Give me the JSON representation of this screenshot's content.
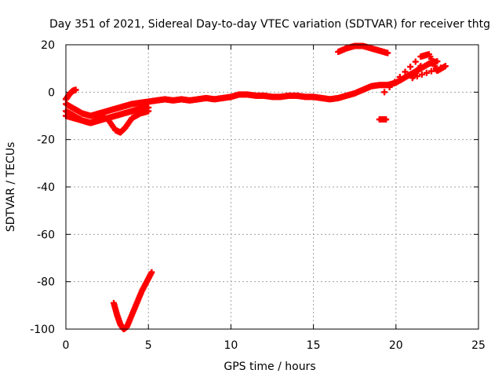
{
  "chart_data": {
    "type": "scatter",
    "title": "Day 351 of 2021, Sidereal Day-to-day VTEC variation (SDTVAR) for receiver thtg",
    "xlabel": "GPS time / hours",
    "ylabel": "SDTVAR / TECUs",
    "xlim": [
      0,
      25
    ],
    "ylim": [
      -100,
      20
    ],
    "xticks": [
      0,
      5,
      10,
      15,
      20,
      25
    ],
    "yticks": [
      -100,
      -80,
      -60,
      -40,
      -20,
      0,
      20
    ],
    "grid": true,
    "marker": "+",
    "marker_color": "#ff0000",
    "series": [
      {
        "name": "main-band",
        "points": [
          [
            0,
            -5
          ],
          [
            0.5,
            -7
          ],
          [
            1,
            -9
          ],
          [
            1.5,
            -10
          ],
          [
            2,
            -9
          ],
          [
            2.5,
            -8
          ],
          [
            3,
            -7
          ],
          [
            3.5,
            -6
          ],
          [
            4,
            -5
          ],
          [
            4.5,
            -4.5
          ],
          [
            5,
            -4
          ],
          [
            5.5,
            -3.5
          ],
          [
            6,
            -3
          ],
          [
            6.5,
            -3.5
          ],
          [
            7,
            -3
          ],
          [
            7.5,
            -3.5
          ],
          [
            8,
            -3
          ],
          [
            8.5,
            -2.5
          ],
          [
            9,
            -3
          ],
          [
            9.5,
            -2.5
          ],
          [
            10,
            -2
          ],
          [
            10.5,
            -1
          ],
          [
            11,
            -1
          ],
          [
            11.5,
            -1.5
          ],
          [
            12,
            -1.5
          ],
          [
            12.5,
            -2
          ],
          [
            13,
            -2
          ],
          [
            13.5,
            -1.5
          ],
          [
            14,
            -1.5
          ],
          [
            14.5,
            -2
          ],
          [
            15,
            -2
          ],
          [
            15.5,
            -2.5
          ],
          [
            16,
            -3
          ],
          [
            16.5,
            -2.5
          ],
          [
            17,
            -1.5
          ],
          [
            17.5,
            -0.5
          ],
          [
            18,
            1
          ],
          [
            18.5,
            2.5
          ],
          [
            19,
            3
          ],
          [
            19.5,
            3
          ],
          [
            20,
            4
          ],
          [
            20.5,
            6
          ],
          [
            21,
            8
          ],
          [
            21.5,
            10
          ],
          [
            22,
            12
          ],
          [
            22.5,
            13
          ]
        ]
      },
      {
        "name": "lower-band",
        "points": [
          [
            0,
            -10
          ],
          [
            0.5,
            -11
          ],
          [
            1,
            -12
          ],
          [
            1.5,
            -13
          ],
          [
            2,
            -12
          ],
          [
            2.5,
            -11
          ],
          [
            3,
            -10
          ],
          [
            3.5,
            -9
          ],
          [
            4,
            -8
          ],
          [
            4.5,
            -7
          ],
          [
            5,
            -6.5
          ]
        ]
      },
      {
        "name": "dip-loop",
        "points": [
          [
            0,
            -8
          ],
          [
            0.5,
            -10
          ],
          [
            1,
            -12
          ],
          [
            1.5,
            -13
          ],
          [
            2,
            -11
          ],
          [
            2.5,
            -11
          ],
          [
            3,
            -16
          ],
          [
            3.3,
            -17
          ],
          [
            3.6,
            -15
          ],
          [
            4,
            -11
          ],
          [
            4.5,
            -9
          ],
          [
            5,
            -8
          ]
        ]
      },
      {
        "name": "early-rise",
        "points": [
          [
            0,
            -3
          ],
          [
            0.2,
            -1
          ],
          [
            0.4,
            0.5
          ],
          [
            0.6,
            1
          ]
        ]
      },
      {
        "name": "deep-arc",
        "points": [
          [
            2.9,
            -89
          ],
          [
            3.1,
            -94
          ],
          [
            3.3,
            -98
          ],
          [
            3.5,
            -100
          ],
          [
            3.7,
            -99
          ],
          [
            4,
            -94
          ],
          [
            4.3,
            -89
          ],
          [
            4.6,
            -84
          ],
          [
            4.9,
            -80
          ],
          [
            5.2,
            -76
          ]
        ]
      },
      {
        "name": "high-arc",
        "points": [
          [
            16.5,
            17
          ],
          [
            17,
            18.5
          ],
          [
            17.5,
            19.5
          ],
          [
            18,
            19.5
          ],
          [
            18.5,
            18.5
          ],
          [
            19,
            17.5
          ],
          [
            19.5,
            16.5
          ]
        ]
      },
      {
        "name": "isolated-segment",
        "points": [
          [
            19,
            -11.5
          ],
          [
            19.2,
            -11.5
          ],
          [
            19.4,
            -11.5
          ]
        ]
      },
      {
        "name": "scattered",
        "points": [
          [
            19.3,
            0
          ],
          [
            21.5,
            15
          ],
          [
            22,
            16
          ],
          [
            22.5,
            9
          ],
          [
            23,
            11
          ],
          [
            21,
            6
          ],
          [
            21.5,
            11
          ]
        ]
      }
    ]
  }
}
